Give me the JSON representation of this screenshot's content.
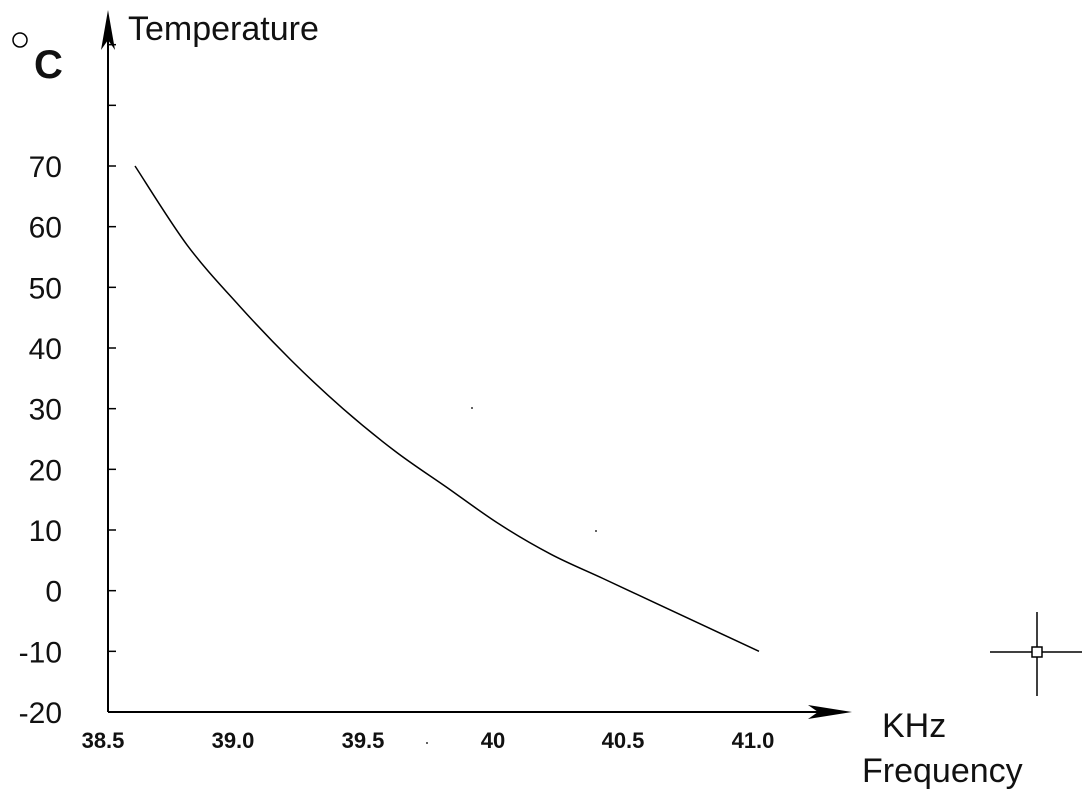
{
  "chart_data": {
    "type": "line",
    "ylabel": "Temperature",
    "yunit": "C",
    "xlabel": "Frequency",
    "xunit": "KHz",
    "x_ticks": [
      "38.5",
      "39.0",
      "39.5",
      "40",
      "40.5",
      "41.0"
    ],
    "y_ticks": [
      "70",
      "60",
      "50",
      "40",
      "30",
      "20",
      "10",
      "0",
      "-10",
      "-20"
    ],
    "xlim": [
      38.5,
      41.0
    ],
    "ylim": [
      -20,
      70
    ],
    "grid": false,
    "series": [
      {
        "x": [
          38.6,
          38.8,
          39.0,
          39.2,
          39.4,
          39.6,
          39.8,
          40.0,
          40.2,
          40.4,
          40.6,
          40.8,
          41.0
        ],
        "y": [
          70,
          57,
          47,
          38,
          30,
          23,
          17,
          11,
          6,
          2,
          -2,
          -6,
          -10
        ]
      }
    ]
  }
}
